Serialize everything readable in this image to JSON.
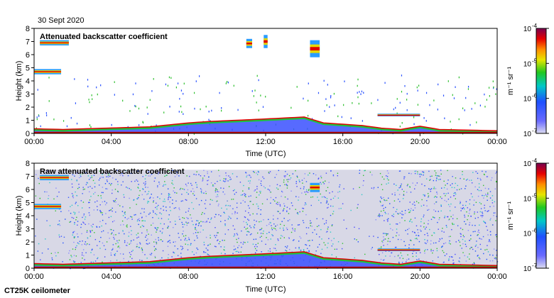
{
  "date": "30 Sept 2020",
  "footer": "CT25K ceilometer",
  "chart_data": [
    {
      "type": "heatmap",
      "title": "Attenuated backscatter coefficient",
      "xlabel": "Time (UTC)",
      "ylabel": "Height (km)",
      "x_ticks": [
        "00:00",
        "04:00",
        "08:00",
        "12:00",
        "16:00",
        "20:00",
        "00:00"
      ],
      "xlim_hours": [
        0,
        24
      ],
      "y_ticks": [
        0,
        1,
        2,
        3,
        4,
        5,
        6,
        7,
        8
      ],
      "ylim": [
        0,
        8
      ],
      "colorbar": {
        "scale": "log",
        "range": [
          1e-07,
          0.0001
        ],
        "units": "m⁻¹ sr⁻¹",
        "ticks": [
          "10",
          "10",
          "10",
          "10"
        ],
        "tick_exponents": [
          "-7",
          "-6",
          "-5",
          "-4"
        ]
      },
      "boundary_layer_top_km": [
        [
          0,
          0.35
        ],
        [
          1.5,
          0.3
        ],
        [
          6,
          0.5
        ],
        [
          8,
          0.8
        ],
        [
          9,
          0.9
        ],
        [
          12,
          1.1
        ],
        [
          14,
          1.25
        ],
        [
          15,
          0.8
        ],
        [
          17,
          0.6
        ],
        [
          18,
          0.4
        ],
        [
          19,
          0.3
        ],
        [
          20,
          0.55
        ],
        [
          21,
          0.3
        ],
        [
          24,
          0.2
        ]
      ],
      "cloud_layers": [
        {
          "t_start": 0.3,
          "t_end": 1.8,
          "base_km": 6.7,
          "top_km": 7.1
        },
        {
          "t_start": 0.0,
          "t_end": 1.4,
          "base_km": 4.5,
          "top_km": 4.9
        },
        {
          "t_start": 11.0,
          "t_end": 11.3,
          "base_km": 6.5,
          "top_km": 7.2
        },
        {
          "t_start": 11.9,
          "t_end": 12.1,
          "base_km": 6.5,
          "top_km": 7.5
        },
        {
          "t_start": 14.3,
          "t_end": 14.8,
          "base_km": 5.8,
          "top_km": 7.1
        },
        {
          "t_start": 17.8,
          "t_end": 20.0,
          "base_km": 1.3,
          "top_km": 1.5
        }
      ]
    },
    {
      "type": "heatmap",
      "title": "Raw attenuated backscatter coefficient",
      "xlabel": "Time (UTC)",
      "ylabel": "Height (km)",
      "x_ticks": [
        "00:00",
        "04:00",
        "08:00",
        "12:00",
        "16:00",
        "20:00",
        "00:00"
      ],
      "xlim_hours": [
        0,
        24
      ],
      "y_ticks": [
        0,
        1,
        2,
        3,
        4,
        5,
        6,
        7,
        8
      ],
      "ylim": [
        0,
        8
      ],
      "colorbar": {
        "scale": "log",
        "range": [
          1e-07,
          0.0001
        ],
        "units": "m⁻¹ sr⁻¹",
        "ticks": [
          "10",
          "10",
          "10",
          "10"
        ],
        "tick_exponents": [
          "-7",
          "-6",
          "-5",
          "-4"
        ]
      },
      "data_top_km": 7.5,
      "boundary_layer_top_km": [
        [
          0,
          0.35
        ],
        [
          1.5,
          0.3
        ],
        [
          6,
          0.5
        ],
        [
          8,
          0.8
        ],
        [
          9,
          0.9
        ],
        [
          12,
          1.1
        ],
        [
          14,
          1.25
        ],
        [
          15,
          0.8
        ],
        [
          17,
          0.6
        ],
        [
          18,
          0.4
        ],
        [
          19,
          0.3
        ],
        [
          20,
          0.55
        ],
        [
          21,
          0.3
        ],
        [
          24,
          0.2
        ]
      ],
      "cloud_layers": [
        {
          "t_start": 0.3,
          "t_end": 1.8,
          "base_km": 6.7,
          "top_km": 7.1
        },
        {
          "t_start": 0.0,
          "t_end": 1.4,
          "base_km": 4.5,
          "top_km": 4.9
        },
        {
          "t_start": 14.3,
          "t_end": 14.8,
          "base_km": 5.8,
          "top_km": 6.5
        },
        {
          "t_start": 17.8,
          "t_end": 20.0,
          "base_km": 1.3,
          "top_km": 1.5
        }
      ]
    }
  ]
}
